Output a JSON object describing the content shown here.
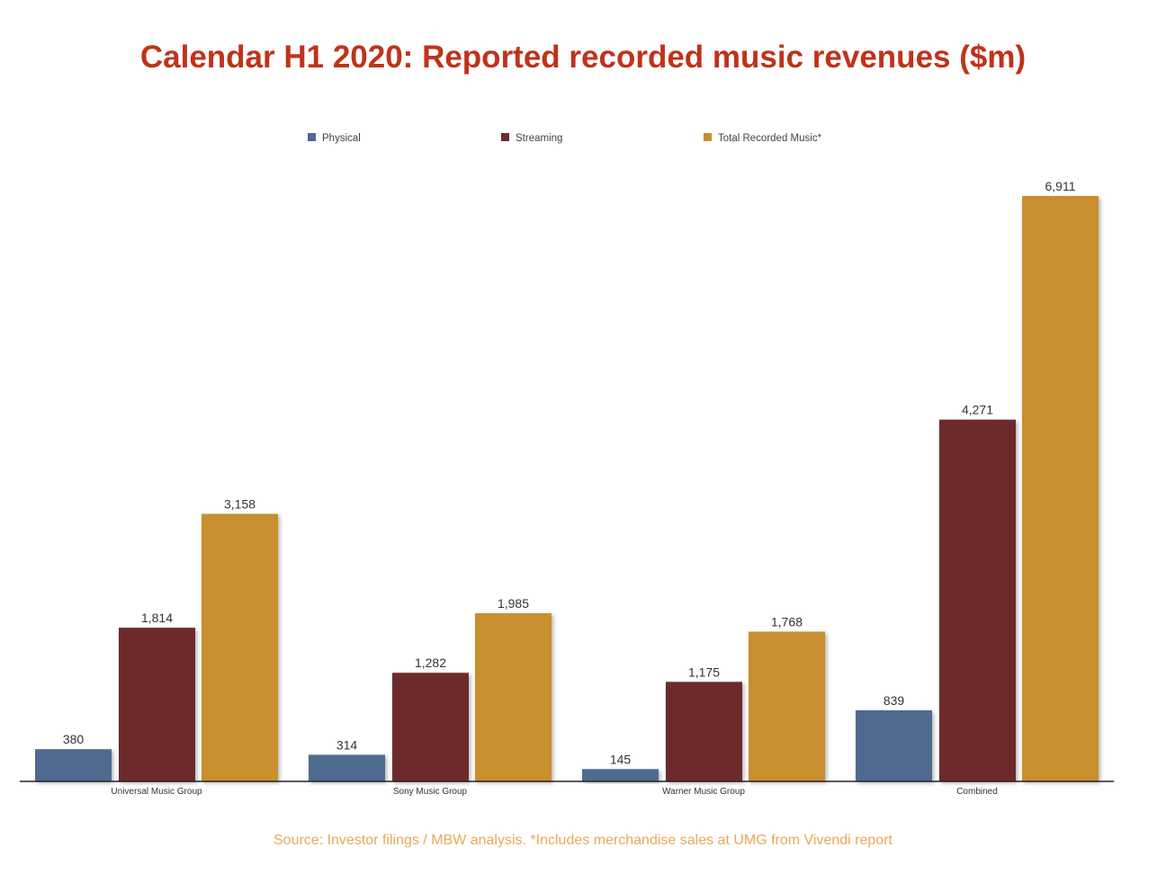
{
  "chart_data": {
    "type": "bar",
    "title": "Calendar H1 2020: Reported recorded music revenues ($m)",
    "source": "Source: Investor filings / MBW analysis. *Includes merchandise sales at UMG from Vivendi report",
    "categories": [
      "Universal Music Group",
      "Sony Music Group",
      "Warner Music Group",
      "Combined"
    ],
    "series": [
      {
        "name": "Physical",
        "color": "#4f6a8f",
        "values": [
          380,
          314,
          145,
          839
        ],
        "labels": [
          "380",
          "314",
          "145",
          "839"
        ]
      },
      {
        "name": "Streaming",
        "color": "#6e2a2c",
        "values": [
          1814,
          1282,
          1175,
          4271
        ],
        "labels": [
          "1,814",
          "1,282",
          "1,175",
          "4,271"
        ]
      },
      {
        "name": "Total Recorded Music*",
        "color": "#c98e2e",
        "values": [
          3158,
          1985,
          1768,
          6911
        ],
        "labels": [
          "3,158",
          "1,985",
          "1,768",
          "6,911"
        ]
      }
    ],
    "ylim": [
      0,
      7000
    ],
    "grid": false,
    "legend": "top"
  }
}
